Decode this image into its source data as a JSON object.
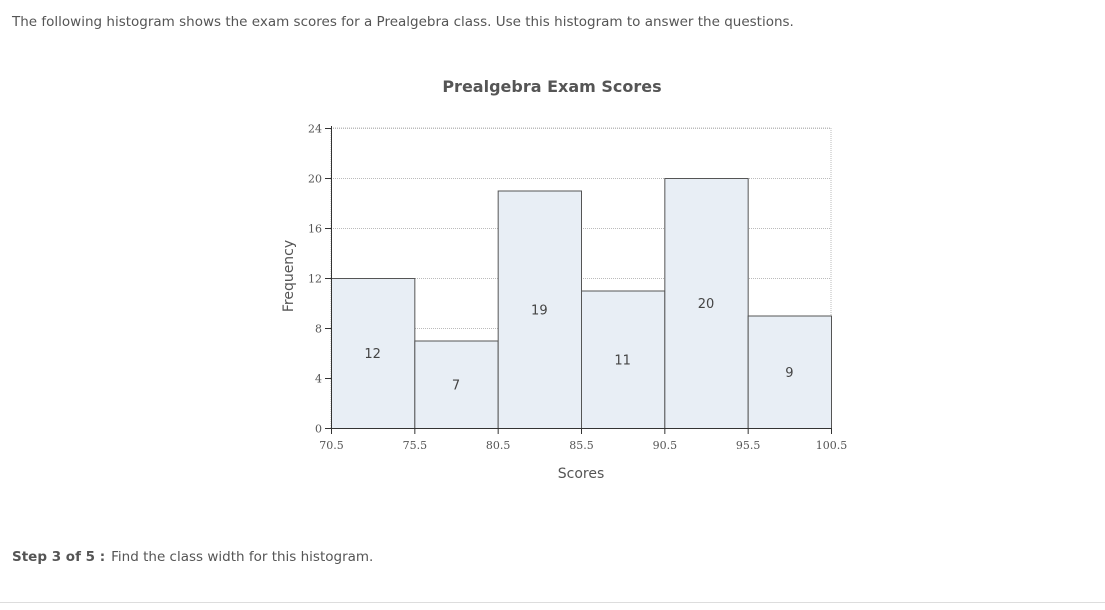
{
  "intro_text": "The following histogram shows the exam scores for a Prealgebra class. Use this histogram to answer the questions.",
  "chart_data": {
    "type": "bar",
    "title": "Prealgebra Exam Scores",
    "xlabel": "Scores",
    "ylabel": "Frequency",
    "bin_edges": [
      70.5,
      75.5,
      80.5,
      85.5,
      90.5,
      95.5,
      100.5
    ],
    "x_tick_labels": [
      "70.5",
      "75.5",
      "80.5",
      "85.5",
      "90.5",
      "95.5",
      "100.5"
    ],
    "values": [
      12,
      7,
      19,
      11,
      20,
      9
    ],
    "data_labels": [
      "12",
      "7",
      "19",
      "11",
      "20",
      "9"
    ],
    "ylim": [
      0,
      24
    ],
    "y_ticks": [
      0,
      4,
      8,
      12,
      16,
      20,
      24
    ],
    "y_tick_labels": [
      "0",
      "4",
      "8",
      "12",
      "16",
      "20",
      "24"
    ],
    "grid": true,
    "colors": {
      "bar_fill": "#e8eef5",
      "bar_stroke": "#555555",
      "grid": "#bbbbbb"
    }
  },
  "step": {
    "label": "Step 3 of 5 :",
    "text": "Find the class width for this histogram."
  }
}
